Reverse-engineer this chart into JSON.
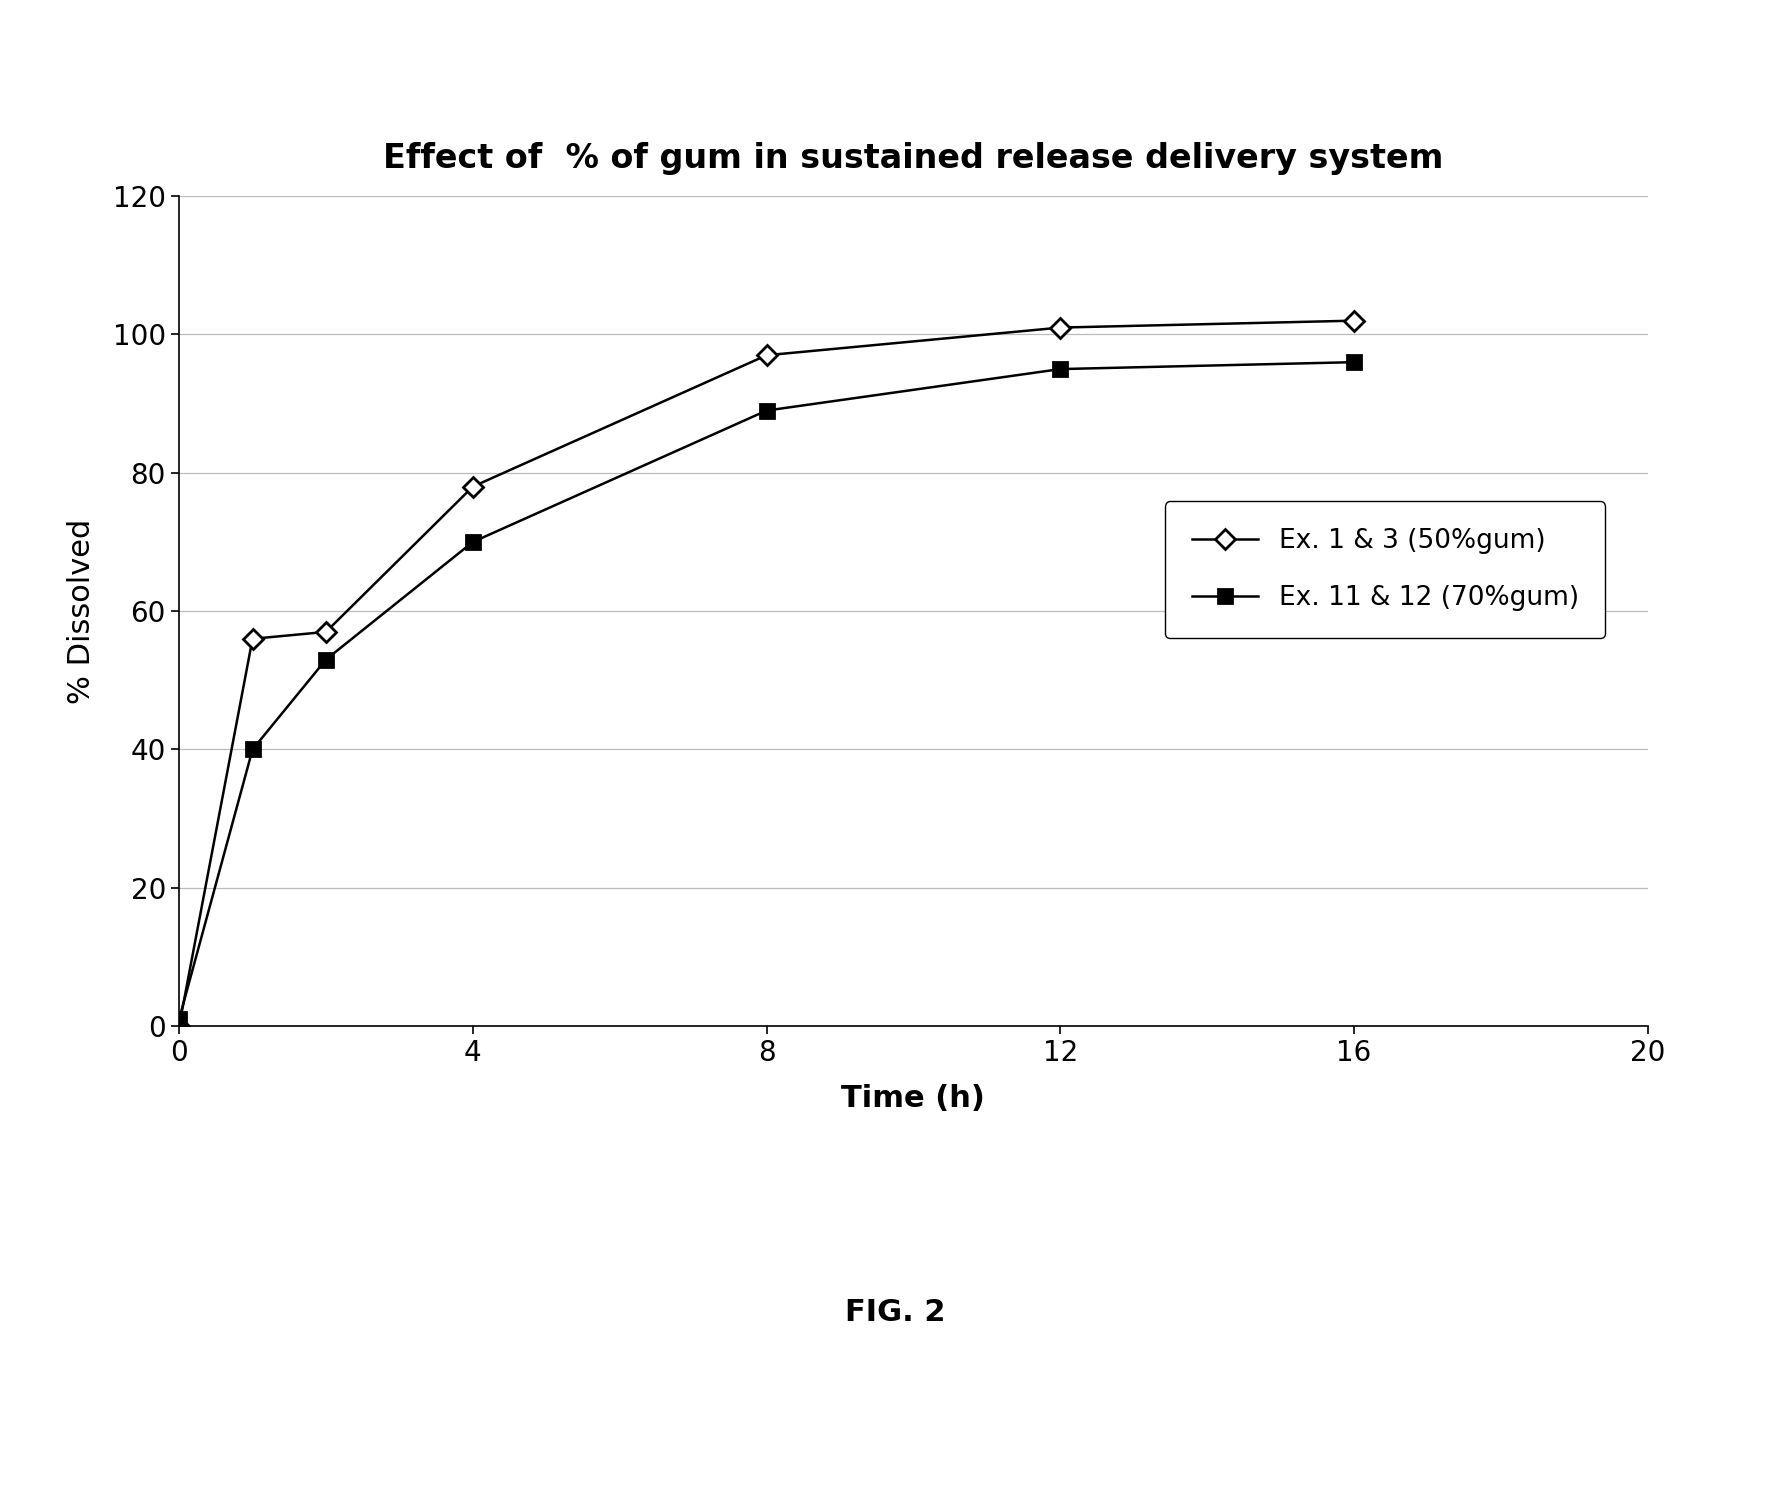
{
  "title": "Effect of  % of gum in sustained release delivery system",
  "xlabel": "Time (h)",
  "ylabel": "% Dissolved",
  "xlim": [
    0,
    20
  ],
  "ylim": [
    0,
    120
  ],
  "xticks": [
    0,
    4,
    8,
    12,
    16,
    20
  ],
  "yticks": [
    0,
    20,
    40,
    60,
    80,
    100,
    120
  ],
  "series1": {
    "x": [
      0,
      1,
      2,
      4,
      8,
      12,
      16
    ],
    "y": [
      0,
      56,
      57,
      78,
      97,
      101,
      102
    ],
    "label": "Ex. 1 & 3 (50%gum)",
    "color": "#000000",
    "marker": "D",
    "markersize": 10,
    "linewidth": 1.8
  },
  "series2": {
    "x": [
      0,
      1,
      2,
      4,
      8,
      12,
      16
    ],
    "y": [
      1,
      40,
      53,
      70,
      89,
      95,
      96
    ],
    "label": "Ex. 11 & 12 (70%gum)",
    "color": "#000000",
    "marker": "s",
    "markersize": 10,
    "linewidth": 1.8
  },
  "background_color": "#ffffff",
  "figsize": [
    17.91,
    15.09
  ],
  "dpi": 100,
  "title_fontsize": 24,
  "axis_label_fontsize": 22,
  "tick_fontsize": 20,
  "legend_fontsize": 19,
  "fig_caption": "FIG. 2",
  "fig_caption_fontsize": 22
}
